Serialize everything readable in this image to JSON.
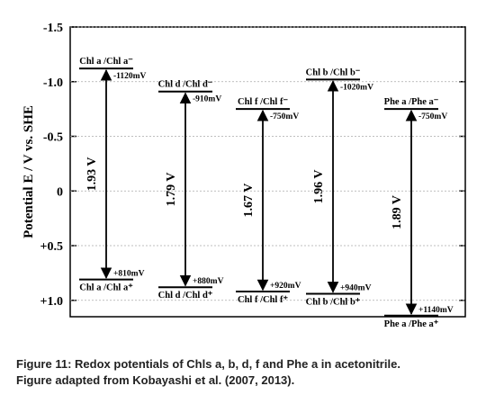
{
  "chart_data": {
    "type": "level",
    "y_label": "Potential E / V vs. SHE",
    "ylim": [
      -1.5,
      1.15
    ],
    "yticks": [
      {
        "value": -1.5,
        "label": "-1.5"
      },
      {
        "value": -1,
        "label": "-1.0"
      },
      {
        "value": -0.5,
        "label": "-0.5"
      },
      0,
      {
        "value": 0.5,
        "label": "+0.5"
      },
      {
        "value": 1,
        "label": "+1.0"
      }
    ],
    "grid": true,
    "color": "#000000",
    "series": [
      {
        "couple_labels": [
          "Chl a /Chl a⁻",
          "Chl a /Chl a⁺"
        ],
        "values": [
          -1.12,
          0.81
        ],
        "value_labels": [
          "-1120mV",
          "+810mV"
        ],
        "gap_label": "1.93 V"
      },
      {
        "couple_labels": [
          "Chl d /Chl d⁻",
          "Chl d /Chl d⁺"
        ],
        "values": [
          -0.91,
          0.88
        ],
        "value_labels": [
          "-910mV",
          "+880mV"
        ],
        "gap_label": "1.79 V"
      },
      {
        "couple_labels": [
          "Chl f /Chl f⁻",
          "Chl f /Chl f⁺"
        ],
        "values": [
          -0.75,
          0.92
        ],
        "value_labels": [
          "-750mV",
          "+920mV"
        ],
        "gap_label": "1.67 V"
      },
      {
        "couple_labels": [
          "Chl b /Chl b⁻",
          "Chl b /Chl b⁺"
        ],
        "values": [
          -1.02,
          0.94
        ],
        "value_labels": [
          "-1020mV",
          "+940mV"
        ],
        "gap_label": "1.96 V"
      },
      {
        "couple_labels": [
          "Phe a /Phe a⁻",
          "Phe a /Phe a⁺"
        ],
        "values": [
          -0.75,
          1.14
        ],
        "value_labels": [
          "-750mV",
          "+1140mV"
        ],
        "gap_label": "1.89 V"
      }
    ]
  },
  "caption": {
    "label": "Figure 11:",
    "lines": [
      "Redox potentials of Chls a, b, d, f and Phe a in acetonitrile.",
      "Figure adapted from Kobayashi et al. (2007, 2013)."
    ]
  }
}
